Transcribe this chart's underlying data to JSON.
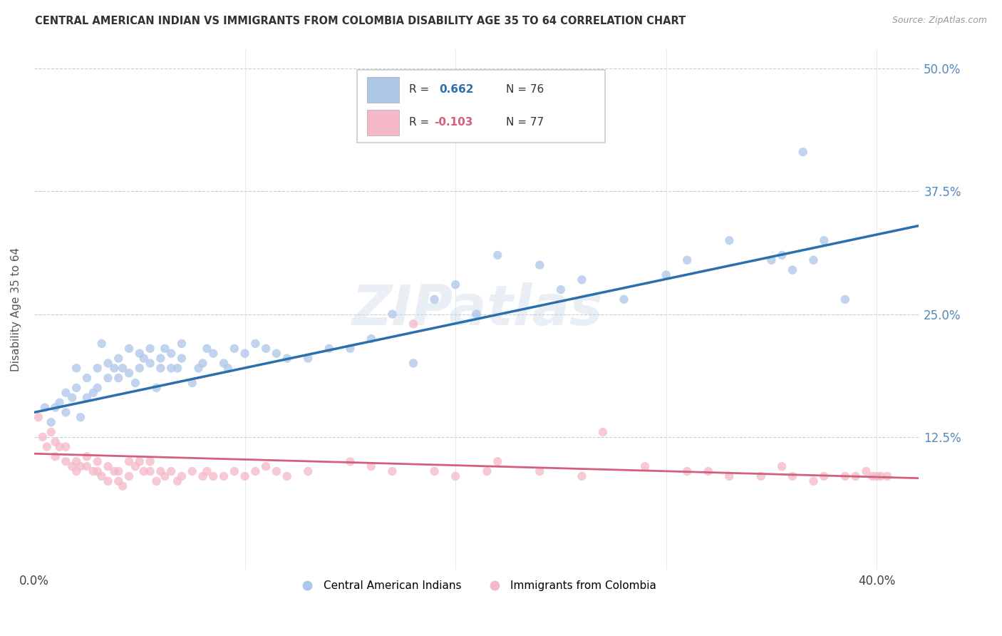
{
  "title": "CENTRAL AMERICAN INDIAN VS IMMIGRANTS FROM COLOMBIA DISABILITY AGE 35 TO 64 CORRELATION CHART",
  "source": "Source: ZipAtlas.com",
  "ylabel": "Disability Age 35 to 64",
  "xlim": [
    0.0,
    0.42
  ],
  "ylim": [
    -0.01,
    0.52
  ],
  "xtick_vals": [
    0.0,
    0.1,
    0.2,
    0.3,
    0.4
  ],
  "xticklabels": [
    "0.0%",
    "",
    "",
    "",
    "40.0%"
  ],
  "ytick_vals": [
    0.125,
    0.25,
    0.375,
    0.5
  ],
  "yticklabels": [
    "12.5%",
    "25.0%",
    "37.5%",
    "50.0%"
  ],
  "blue_R": "0.662",
  "blue_N": "76",
  "pink_R": "-0.103",
  "pink_N": "77",
  "blue_fill_color": "#aec6e8",
  "blue_edge_color": "#aec6e8",
  "pink_fill_color": "#f4b8c8",
  "pink_edge_color": "#f4b8c8",
  "blue_line_color": "#2c6fad",
  "pink_line_color": "#d45f7a",
  "watermark": "ZIPatlas",
  "legend_label_blue": "Central American Indians",
  "legend_label_pink": "Immigrants from Colombia",
  "blue_scatter_x": [
    0.005,
    0.008,
    0.01,
    0.012,
    0.015,
    0.015,
    0.018,
    0.02,
    0.02,
    0.022,
    0.025,
    0.025,
    0.028,
    0.03,
    0.03,
    0.032,
    0.035,
    0.035,
    0.038,
    0.04,
    0.04,
    0.042,
    0.045,
    0.045,
    0.048,
    0.05,
    0.05,
    0.052,
    0.055,
    0.055,
    0.058,
    0.06,
    0.06,
    0.062,
    0.065,
    0.065,
    0.068,
    0.07,
    0.07,
    0.075,
    0.078,
    0.08,
    0.082,
    0.085,
    0.09,
    0.092,
    0.095,
    0.1,
    0.105,
    0.11,
    0.115,
    0.12,
    0.13,
    0.14,
    0.15,
    0.16,
    0.17,
    0.18,
    0.19,
    0.2,
    0.21,
    0.22,
    0.24,
    0.25,
    0.26,
    0.28,
    0.3,
    0.31,
    0.33,
    0.35,
    0.355,
    0.36,
    0.365,
    0.37,
    0.375,
    0.385
  ],
  "blue_scatter_y": [
    0.155,
    0.14,
    0.155,
    0.16,
    0.15,
    0.17,
    0.165,
    0.175,
    0.195,
    0.145,
    0.165,
    0.185,
    0.17,
    0.195,
    0.175,
    0.22,
    0.185,
    0.2,
    0.195,
    0.185,
    0.205,
    0.195,
    0.19,
    0.215,
    0.18,
    0.195,
    0.21,
    0.205,
    0.2,
    0.215,
    0.175,
    0.205,
    0.195,
    0.215,
    0.195,
    0.21,
    0.195,
    0.205,
    0.22,
    0.18,
    0.195,
    0.2,
    0.215,
    0.21,
    0.2,
    0.195,
    0.215,
    0.21,
    0.22,
    0.215,
    0.21,
    0.205,
    0.205,
    0.215,
    0.215,
    0.225,
    0.25,
    0.2,
    0.265,
    0.28,
    0.25,
    0.31,
    0.3,
    0.275,
    0.285,
    0.265,
    0.29,
    0.305,
    0.325,
    0.305,
    0.31,
    0.295,
    0.415,
    0.305,
    0.325,
    0.265
  ],
  "pink_scatter_x": [
    0.002,
    0.004,
    0.006,
    0.008,
    0.01,
    0.01,
    0.012,
    0.015,
    0.015,
    0.018,
    0.02,
    0.02,
    0.022,
    0.025,
    0.025,
    0.028,
    0.03,
    0.03,
    0.032,
    0.035,
    0.035,
    0.038,
    0.04,
    0.04,
    0.042,
    0.045,
    0.045,
    0.048,
    0.05,
    0.052,
    0.055,
    0.055,
    0.058,
    0.06,
    0.062,
    0.065,
    0.068,
    0.07,
    0.075,
    0.08,
    0.082,
    0.085,
    0.09,
    0.095,
    0.1,
    0.105,
    0.11,
    0.115,
    0.12,
    0.13,
    0.15,
    0.16,
    0.17,
    0.18,
    0.19,
    0.2,
    0.215,
    0.22,
    0.24,
    0.26,
    0.27,
    0.29,
    0.31,
    0.32,
    0.33,
    0.345,
    0.355,
    0.36,
    0.37,
    0.375,
    0.385,
    0.39,
    0.395,
    0.398,
    0.4,
    0.402,
    0.405
  ],
  "pink_scatter_y": [
    0.145,
    0.125,
    0.115,
    0.13,
    0.105,
    0.12,
    0.115,
    0.1,
    0.115,
    0.095,
    0.1,
    0.09,
    0.095,
    0.105,
    0.095,
    0.09,
    0.1,
    0.09,
    0.085,
    0.095,
    0.08,
    0.09,
    0.09,
    0.08,
    0.075,
    0.1,
    0.085,
    0.095,
    0.1,
    0.09,
    0.1,
    0.09,
    0.08,
    0.09,
    0.085,
    0.09,
    0.08,
    0.085,
    0.09,
    0.085,
    0.09,
    0.085,
    0.085,
    0.09,
    0.085,
    0.09,
    0.095,
    0.09,
    0.085,
    0.09,
    0.1,
    0.095,
    0.09,
    0.24,
    0.09,
    0.085,
    0.09,
    0.1,
    0.09,
    0.085,
    0.13,
    0.095,
    0.09,
    0.09,
    0.085,
    0.085,
    0.095,
    0.085,
    0.08,
    0.085,
    0.085,
    0.085,
    0.09,
    0.085,
    0.085,
    0.085,
    0.085
  ],
  "blue_trend_x": [
    0.0,
    0.42
  ],
  "blue_trend_y": [
    0.15,
    0.34
  ],
  "pink_trend_x": [
    0.0,
    0.42
  ],
  "pink_trend_y": [
    0.108,
    0.083
  ]
}
